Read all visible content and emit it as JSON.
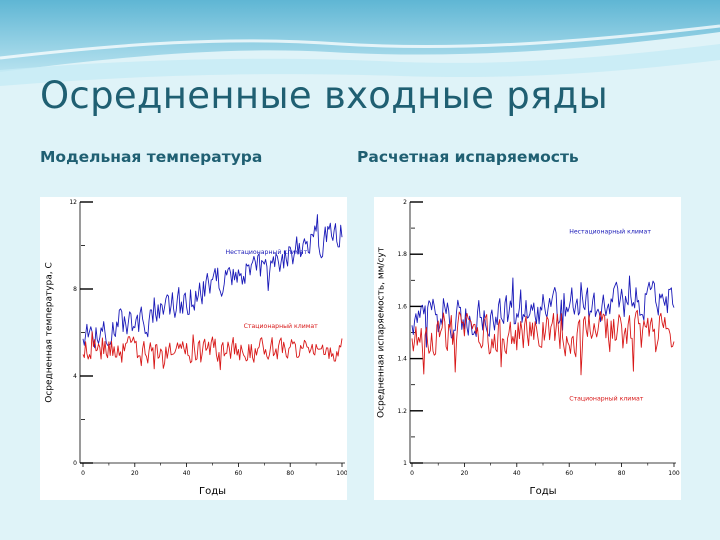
{
  "slide": {
    "title": "Осредненные входные ряды",
    "subtitle_left": "Модельная температура",
    "subtitle_right": "Расчетная испаряемость"
  },
  "colors": {
    "title": "#1f5f72",
    "background": "#dff3f8",
    "series_blue": "#1a1ab8",
    "series_red": "#d81818"
  },
  "chart_data": [
    {
      "type": "line",
      "title": "",
      "xlabel": "Годы",
      "ylabel": "Осредненная температура, С",
      "xlim": [
        0,
        100
      ],
      "ylim": [
        0,
        12
      ],
      "x_ticks": [
        "0",
        "20",
        "40",
        "60",
        "80",
        "100"
      ],
      "y_ticks": [
        "0",
        "4",
        "8",
        "12"
      ],
      "series": [
        {
          "name": "Нестационарный климат",
          "color": "#1a1ab8",
          "x": [
            0,
            5,
            10,
            15,
            20,
            25,
            30,
            35,
            40,
            45,
            50,
            55,
            60,
            65,
            70,
            75,
            80,
            85,
            90,
            95,
            100
          ],
          "values": [
            6.0,
            6.1,
            6.2,
            6.3,
            6.4,
            6.6,
            6.9,
            7.2,
            7.5,
            7.9,
            8.2,
            8.5,
            8.7,
            8.8,
            9.0,
            9.3,
            9.6,
            9.9,
            10.2,
            10.4,
            10.5
          ],
          "noise": 0.7
        },
        {
          "name": "Стационарный климат",
          "color": "#d81818",
          "x": [
            0,
            20,
            40,
            60,
            80,
            100
          ],
          "values": [
            5.2,
            5.2,
            5.2,
            5.2,
            5.2,
            5.2
          ],
          "noise": 0.55
        }
      ]
    },
    {
      "type": "line",
      "title": "",
      "xlabel": "Годы",
      "ylabel": "Осредненная испаряемость, мм/сут",
      "xlim": [
        0,
        100
      ],
      "ylim": [
        1,
        2
      ],
      "x_ticks": [
        "0",
        "20",
        "40",
        "60",
        "80",
        "100"
      ],
      "y_ticks": [
        "1",
        "1.2",
        "1.4",
        "1.6",
        "1.8",
        "2"
      ],
      "series": [
        {
          "name": "Нестационарный климат",
          "color": "#1a1ab8",
          "x": [
            0,
            20,
            40,
            60,
            80,
            100
          ],
          "values": [
            1.55,
            1.56,
            1.58,
            1.6,
            1.62,
            1.64
          ],
          "noise": 0.07
        },
        {
          "name": "Стационарный климат",
          "color": "#d81818",
          "x": [
            0,
            20,
            40,
            60,
            80,
            100
          ],
          "values": [
            1.5,
            1.5,
            1.5,
            1.5,
            1.5,
            1.5
          ],
          "noise": 0.08
        }
      ]
    }
  ]
}
